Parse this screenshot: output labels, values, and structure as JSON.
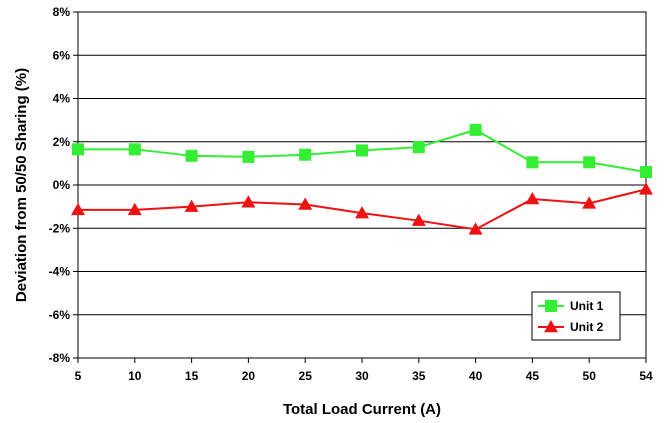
{
  "chart_data": {
    "type": "line",
    "title": "",
    "xlabel": "Total Load Current (A)",
    "ylabel": "Deviation from 50/50 Sharing (%)",
    "x": [
      5,
      10,
      15,
      20,
      25,
      30,
      35,
      40,
      45,
      50,
      54
    ],
    "x_tick_labels": [
      "5",
      "10",
      "15",
      "20",
      "25",
      "30",
      "35",
      "40",
      "45",
      "50",
      "54"
    ],
    "x_scale": "categorical-even",
    "ylim": [
      -8,
      8
    ],
    "y_ticks": [
      -8,
      -6,
      -4,
      -2,
      0,
      2,
      4,
      6,
      8
    ],
    "y_tick_labels": [
      "-8%",
      "-6%",
      "-4%",
      "-2%",
      "0%",
      "2%",
      "4%",
      "6%",
      "8%"
    ],
    "grid": "horizontal",
    "legend_position": "bottom-right",
    "series": [
      {
        "name": "Unit 1",
        "color": "#33ee33",
        "marker": "square",
        "values": [
          1.65,
          1.65,
          1.35,
          1.3,
          1.4,
          1.6,
          1.75,
          2.55,
          1.05,
          1.05,
          0.6
        ]
      },
      {
        "name": "Unit 2",
        "color": "#ee1111",
        "marker": "triangle",
        "values": [
          -1.15,
          -1.15,
          -1.0,
          -0.8,
          -0.9,
          -1.3,
          -1.65,
          -2.05,
          -0.65,
          -0.85,
          -0.2
        ]
      }
    ]
  }
}
